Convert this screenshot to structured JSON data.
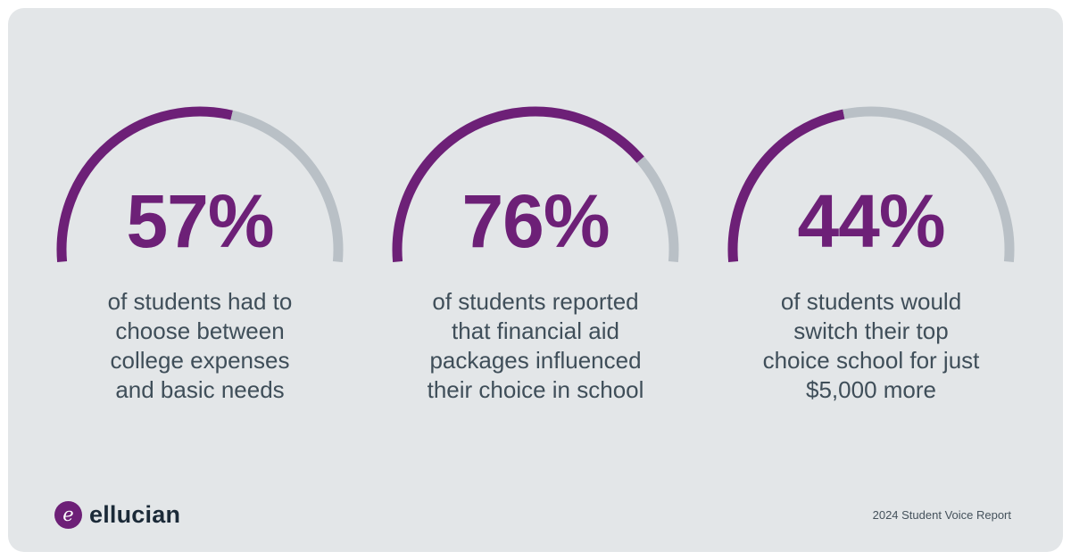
{
  "background": {
    "outer": "#ffffff",
    "card": "#e3e6e8"
  },
  "chart_data": {
    "type": "gauge",
    "title": "",
    "range": [
      0,
      100
    ],
    "value_color": "#6D2077",
    "track_color": "#B9C0C6",
    "arc": {
      "start_deg": 185,
      "sweep_deg": 190,
      "radius": 155,
      "stroke_width": 11
    },
    "gauges": [
      {
        "value": 57,
        "display": "57%",
        "caption": "of students had to\nchoose between\ncollege expenses\nand basic needs"
      },
      {
        "value": 76,
        "display": "76%",
        "caption": "of students reported\nthat financial aid\npackages influenced\ntheir choice in school"
      },
      {
        "value": 44,
        "display": "44%",
        "caption": "of students would\nswitch their top\nchoice school for just\n$5,000 more"
      }
    ]
  },
  "footer": {
    "brand": "ellucian",
    "report_label": "2024 Student Voice Report"
  }
}
